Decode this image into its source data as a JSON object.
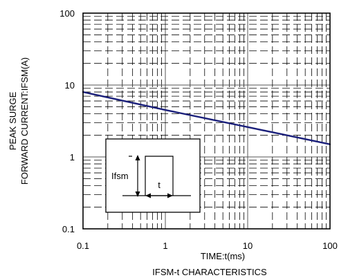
{
  "chart_data": {
    "type": "line",
    "title": "IFSM-t CHARACTERISTICS",
    "xlabel": "TIME:t(ms)",
    "ylabel_lines": [
      "PEAK SURGE",
      "FORWARD CURRENT:IFSM(A)"
    ],
    "xscale": "log",
    "yscale": "log",
    "xlim": [
      0.1,
      100
    ],
    "ylim": [
      0.1,
      100
    ],
    "x_ticks": [
      {
        "value": 0.1,
        "label": "0.1"
      },
      {
        "value": 1,
        "label": "1"
      },
      {
        "value": 10,
        "label": "10"
      },
      {
        "value": 100,
        "label": "100"
      }
    ],
    "y_ticks": [
      {
        "value": 0.1,
        "label": "0.1"
      },
      {
        "value": 1,
        "label": "1"
      },
      {
        "value": 10,
        "label": "10"
      },
      {
        "value": 100,
        "label": "100"
      }
    ],
    "grid": "dashed minor, solid major",
    "series": [
      {
        "color": "#1a1f7a",
        "x": [
          0.1,
          1,
          10,
          100
        ],
        "y": [
          8.0,
          4.5,
          2.6,
          1.5
        ]
      }
    ],
    "inset": {
      "pulse_label": "Ifsm",
      "width_label": "t"
    }
  }
}
